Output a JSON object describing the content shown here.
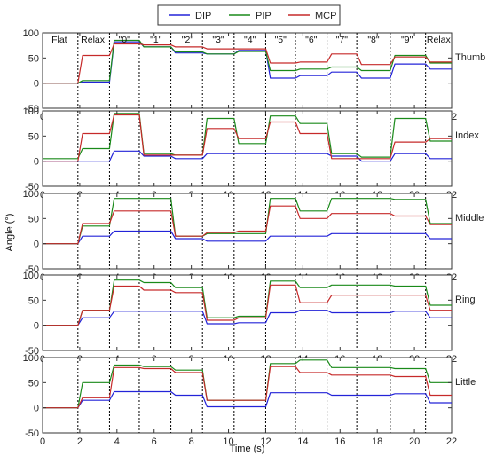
{
  "chart_data": {
    "type": "line",
    "xlabel": "Time (s)",
    "ylabel": "Angle (°)",
    "xlim": [
      0,
      22
    ],
    "ylim": [
      -50,
      100
    ],
    "xticks": [
      "0",
      "2",
      "4",
      "6",
      "8",
      "10",
      "12",
      "14",
      "16",
      "18",
      "20",
      "22"
    ],
    "yticks": [
      "-50",
      "0",
      "50",
      "100"
    ],
    "legend": {
      "placement": "top-center",
      "entries": [
        "DIP",
        "PIP",
        "MCP"
      ]
    },
    "colors": {
      "DIP": "#2323d8",
      "PIP": "#1a8a1a",
      "MCP": "#c62a2a"
    },
    "phase_boundaries": [
      1.9,
      3.6,
      5.2,
      6.9,
      8.6,
      10.3,
      12.0,
      13.6,
      15.3,
      16.9,
      18.7,
      20.6
    ],
    "phase_labels": [
      "Flat",
      "Relax",
      "\"0\"",
      "\"1\"",
      "\"2\"",
      "\"3\"",
      "\"4\"",
      "\"5\"",
      "\"6\"",
      "\"7\"",
      "\"8\"",
      "\"9\"",
      "Relax"
    ],
    "phase_label_x": [
      0.9,
      2.7,
      4.4,
      6.1,
      7.8,
      9.45,
      11.15,
      12.8,
      14.45,
      16.1,
      17.8,
      19.6,
      21.3
    ],
    "phase_centers": [
      0.95,
      2.75,
      4.4,
      6.05,
      7.75,
      9.45,
      11.15,
      12.8,
      14.45,
      16.1,
      17.8,
      19.65,
      21.3
    ],
    "panels": [
      {
        "name": "Thumb",
        "series": [
          {
            "name": "DIP",
            "levels": [
              0,
              2,
              82,
              72,
              60,
              58,
              65,
              10,
              15,
              22,
              10,
              38,
              28
            ]
          },
          {
            "name": "PIP",
            "levels": [
              0,
              5,
              85,
              72,
              62,
              58,
              63,
              25,
              28,
              32,
              25,
              55,
              40
            ]
          },
          {
            "name": "MCP",
            "levels": [
              0,
              55,
              78,
              76,
              72,
              68,
              68,
              40,
              42,
              58,
              37,
              52,
              42
            ]
          }
        ]
      },
      {
        "name": "Index",
        "series": [
          {
            "name": "DIP",
            "levels": [
              0,
              0,
              20,
              10,
              5,
              15,
              15,
              15,
              15,
              10,
              0,
              15,
              5
            ]
          },
          {
            "name": "PIP",
            "levels": [
              5,
              25,
              95,
              15,
              12,
              85,
              35,
              90,
              75,
              15,
              8,
              85,
              40
            ]
          },
          {
            "name": "MCP",
            "levels": [
              0,
              55,
              92,
              12,
              12,
              65,
              45,
              78,
              55,
              5,
              5,
              38,
              45
            ]
          }
        ]
      },
      {
        "name": "Middle",
        "series": [
          {
            "name": "DIP",
            "levels": [
              0,
              15,
              25,
              25,
              10,
              5,
              5,
              15,
              15,
              20,
              20,
              20,
              10
            ]
          },
          {
            "name": "PIP",
            "levels": [
              0,
              35,
              90,
              90,
              15,
              20,
              20,
              90,
              65,
              90,
              90,
              88,
              40
            ]
          },
          {
            "name": "MCP",
            "levels": [
              0,
              40,
              65,
              65,
              15,
              22,
              25,
              75,
              50,
              60,
              60,
              55,
              38
            ]
          }
        ]
      },
      {
        "name": "Ring",
        "series": [
          {
            "name": "DIP",
            "levels": [
              0,
              15,
              28,
              28,
              28,
              3,
              5,
              25,
              30,
              25,
              25,
              28,
              15
            ]
          },
          {
            "name": "PIP",
            "levels": [
              0,
              30,
              90,
              85,
              75,
              15,
              18,
              88,
              75,
              80,
              80,
              78,
              40
            ]
          },
          {
            "name": "MCP",
            "levels": [
              0,
              30,
              78,
              70,
              65,
              10,
              15,
              80,
              45,
              60,
              60,
              60,
              30
            ]
          }
        ]
      },
      {
        "name": "Little",
        "series": [
          {
            "name": "DIP",
            "levels": [
              0,
              15,
              32,
              32,
              25,
              2,
              2,
              30,
              30,
              25,
              25,
              28,
              10
            ]
          },
          {
            "name": "PIP",
            "levels": [
              0,
              50,
              85,
              82,
              75,
              15,
              15,
              88,
              95,
              80,
              80,
              78,
              50
            ]
          },
          {
            "name": "MCP",
            "levels": [
              0,
              20,
              80,
              78,
              70,
              15,
              15,
              82,
              70,
              65,
              65,
              62,
              25
            ]
          }
        ]
      }
    ]
  }
}
